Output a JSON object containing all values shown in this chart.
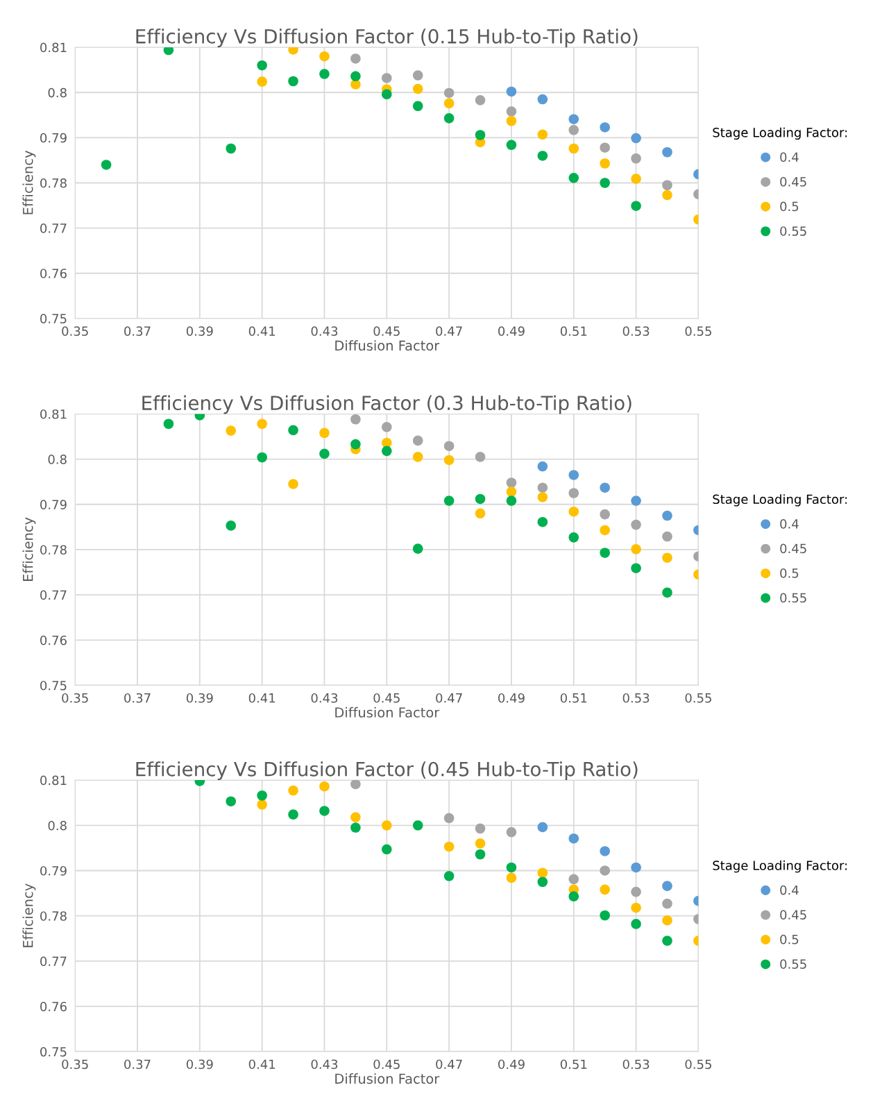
{
  "chart_data": [
    {
      "type": "scatter",
      "title": "Efficiency Vs Diffusion Factor (0.15 Hub-to-Tip Ratio)",
      "xlabel": "Diffusion Factor",
      "ylabel": "Efficiency",
      "legend_title": "Stage Loading Factor:",
      "legend": "right",
      "grid": true,
      "marker": "circle",
      "xlim": [
        0.35,
        0.55
      ],
      "xticks": [
        0.35,
        0.37,
        0.39,
        0.41,
        0.43,
        0.45,
        0.47,
        0.49,
        0.51,
        0.53,
        0.55
      ],
      "ylim": [
        0.75,
        0.81
      ],
      "yticks": [
        0.75,
        0.76,
        0.77,
        0.78,
        0.79,
        0.8,
        0.81
      ],
      "series": [
        {
          "name": "0.4",
          "color": "#5b9bd5",
          "x": [
            0.49,
            0.5,
            0.51,
            0.52,
            0.53,
            0.54,
            0.55
          ],
          "values": [
            0.8002,
            0.7985,
            0.7941,
            0.7923,
            0.7899,
            0.7868,
            0.7819
          ]
        },
        {
          "name": "0.45",
          "color": "#a5a5a5",
          "x": [
            0.44,
            0.45,
            0.46,
            0.47,
            0.48,
            0.49,
            0.5,
            0.51,
            0.52,
            0.53,
            0.54,
            0.55
          ],
          "values": [
            0.8075,
            0.8032,
            0.8038,
            0.7999,
            0.7983,
            0.7958,
            null,
            0.7917,
            0.7878,
            0.7854,
            0.7795,
            0.7775
          ]
        },
        {
          "name": "0.5",
          "color": "#ffc000",
          "x": [
            0.41,
            0.42,
            0.43,
            0.44,
            0.45,
            0.46,
            0.47,
            0.48,
            0.49,
            0.5,
            0.51,
            0.52,
            0.53,
            0.54,
            0.55
          ],
          "values": [
            0.8024,
            0.8095,
            0.808,
            0.8018,
            0.8007,
            0.8008,
            0.7976,
            0.789,
            0.7937,
            0.7907,
            0.7876,
            0.7843,
            0.7809,
            0.7773,
            0.7719
          ]
        },
        {
          "name": "0.55",
          "color": "#00b050",
          "x": [
            0.36,
            0.38,
            0.4,
            0.41,
            0.42,
            0.43,
            0.44,
            0.45,
            0.46,
            0.47,
            0.48,
            0.49,
            0.5,
            0.51,
            0.52,
            0.53
          ],
          "values": [
            0.784,
            0.8094,
            0.7876,
            0.806,
            0.8025,
            0.8041,
            0.8036,
            0.7996,
            0.797,
            0.7943,
            0.7906,
            0.7884,
            0.786,
            0.7811,
            0.78,
            0.7749
          ]
        }
      ]
    },
    {
      "type": "scatter",
      "title": "Efficiency Vs Diffusion Factor (0.3 Hub-to-Tip Ratio)",
      "xlabel": "Diffusion Factor",
      "ylabel": "Efficiency",
      "legend_title": "Stage Loading Factor:",
      "legend": "right",
      "grid": true,
      "marker": "circle",
      "xlim": [
        0.35,
        0.55
      ],
      "xticks": [
        0.35,
        0.37,
        0.39,
        0.41,
        0.43,
        0.45,
        0.47,
        0.49,
        0.51,
        0.53,
        0.55
      ],
      "ylim": [
        0.75,
        0.81
      ],
      "yticks": [
        0.75,
        0.76,
        0.77,
        0.78,
        0.79,
        0.8,
        0.81
      ],
      "series": [
        {
          "name": "0.4",
          "color": "#5b9bd5",
          "x": [
            0.5,
            0.51,
            0.52,
            0.53,
            0.54,
            0.55
          ],
          "values": [
            0.7984,
            0.7965,
            0.7937,
            0.7908,
            0.7875,
            0.7843
          ]
        },
        {
          "name": "0.45",
          "color": "#a5a5a5",
          "x": [
            0.44,
            0.45,
            0.46,
            0.47,
            0.48,
            0.49,
            0.5,
            0.51,
            0.52,
            0.53,
            0.54,
            0.55
          ],
          "values": [
            0.8088,
            0.8071,
            0.8041,
            0.8029,
            0.8005,
            0.7948,
            0.7937,
            0.7925,
            0.7878,
            0.7855,
            0.7829,
            0.7785
          ]
        },
        {
          "name": "0.5",
          "color": "#ffc000",
          "x": [
            0.4,
            0.41,
            0.42,
            0.43,
            0.44,
            0.45,
            0.46,
            0.47,
            0.48,
            0.49,
            0.5,
            0.51,
            0.52,
            0.53,
            0.54,
            0.55
          ],
          "values": [
            0.8063,
            0.8078,
            0.7945,
            0.8058,
            0.8022,
            0.8036,
            0.8005,
            0.7998,
            0.788,
            0.7928,
            0.7916,
            0.7884,
            0.7843,
            0.7801,
            0.7782,
            0.7745
          ]
        },
        {
          "name": "0.55",
          "color": "#00b050",
          "x": [
            0.38,
            0.39,
            0.4,
            0.41,
            0.42,
            0.43,
            0.44,
            0.45,
            0.46,
            0.47,
            0.48,
            0.49,
            0.5,
            0.51,
            0.52,
            0.53,
            0.54
          ],
          "values": [
            0.8078,
            0.8097,
            0.7853,
            0.8004,
            0.8064,
            0.8012,
            0.8033,
            0.8018,
            0.7802,
            0.7908,
            0.7912,
            0.7908,
            0.7861,
            0.7827,
            0.7793,
            0.7759,
            0.7705
          ]
        }
      ]
    },
    {
      "type": "scatter",
      "title": "Efficiency Vs Diffusion Factor (0.45 Hub-to-Tip Ratio)",
      "xlabel": "Diffusion Factor",
      "ylabel": "Efficiency",
      "legend_title": "Stage Loading Factor:",
      "legend": "right",
      "grid": true,
      "marker": "circle",
      "xlim": [
        0.35,
        0.55
      ],
      "xticks": [
        0.35,
        0.37,
        0.39,
        0.41,
        0.43,
        0.45,
        0.47,
        0.49,
        0.51,
        0.53,
        0.55
      ],
      "ylim": [
        0.75,
        0.81
      ],
      "yticks": [
        0.75,
        0.76,
        0.77,
        0.78,
        0.79,
        0.8,
        0.81
      ],
      "series": [
        {
          "name": "0.4",
          "color": "#5b9bd5",
          "x": [
            0.5,
            0.51,
            0.52,
            0.53,
            0.54,
            0.55
          ],
          "values": [
            0.7996,
            0.7971,
            0.7943,
            0.7907,
            0.7866,
            0.7833
          ]
        },
        {
          "name": "0.45",
          "color": "#a5a5a5",
          "x": [
            0.44,
            0.45,
            0.46,
            0.47,
            0.48,
            0.49,
            0.51,
            0.52,
            0.53,
            0.54,
            0.55
          ],
          "values": [
            0.8091,
            null,
            null,
            0.8016,
            0.7993,
            0.7985,
            0.7881,
            0.79,
            0.7853,
            0.7827,
            0.7793
          ]
        },
        {
          "name": "0.5",
          "color": "#ffc000",
          "x": [
            0.41,
            0.42,
            0.43,
            0.44,
            0.45,
            0.46,
            0.47,
            0.48,
            0.49,
            0.5,
            0.51,
            0.52,
            0.53,
            0.54,
            0.55
          ],
          "values": [
            0.8046,
            0.8077,
            0.8086,
            0.8018,
            0.8,
            null,
            0.7953,
            0.796,
            0.7884,
            0.7895,
            0.7858,
            0.7858,
            0.7818,
            0.779,
            0.7745
          ]
        },
        {
          "name": "0.55",
          "color": "#00b050",
          "x": [
            0.39,
            0.4,
            0.41,
            0.42,
            0.43,
            0.44,
            0.45,
            0.46,
            0.47,
            0.48,
            0.49,
            0.5,
            0.51,
            0.52,
            0.53,
            0.54
          ],
          "values": [
            0.8098,
            0.8053,
            0.8066,
            0.8024,
            0.8032,
            0.7995,
            0.7947,
            0.8,
            0.7888,
            0.7936,
            0.7907,
            0.7875,
            0.7843,
            0.7801,
            0.7782,
            0.7745
          ]
        }
      ]
    }
  ]
}
